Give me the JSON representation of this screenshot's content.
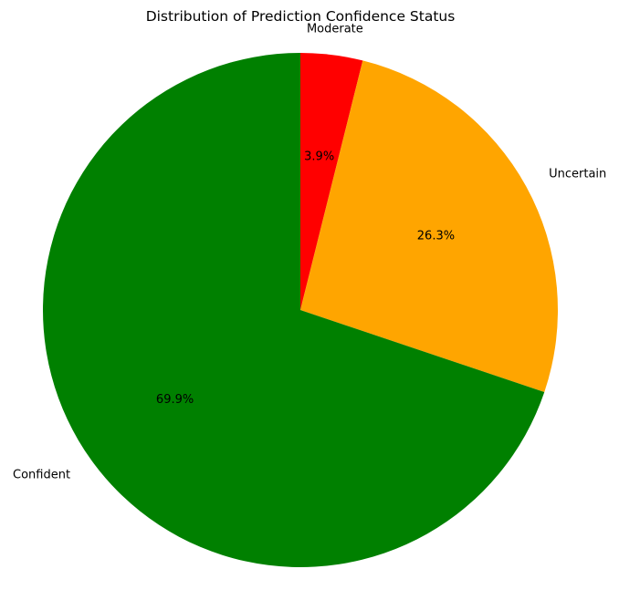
{
  "chart_data": {
    "type": "pie",
    "title": "Distribution of Prediction Confidence Status",
    "slices": [
      {
        "label": "Moderate",
        "value": 3.9,
        "pct_label": "3.9%",
        "color": "#ff0000"
      },
      {
        "label": "Uncertain",
        "value": 26.3,
        "pct_label": "26.3%",
        "color": "#ffa500"
      },
      {
        "label": "Confident",
        "value": 69.9,
        "pct_label": "69.9%",
        "color": "#008000"
      }
    ],
    "start_angle": "top",
    "direction": "clockwise",
    "legend": false
  }
}
